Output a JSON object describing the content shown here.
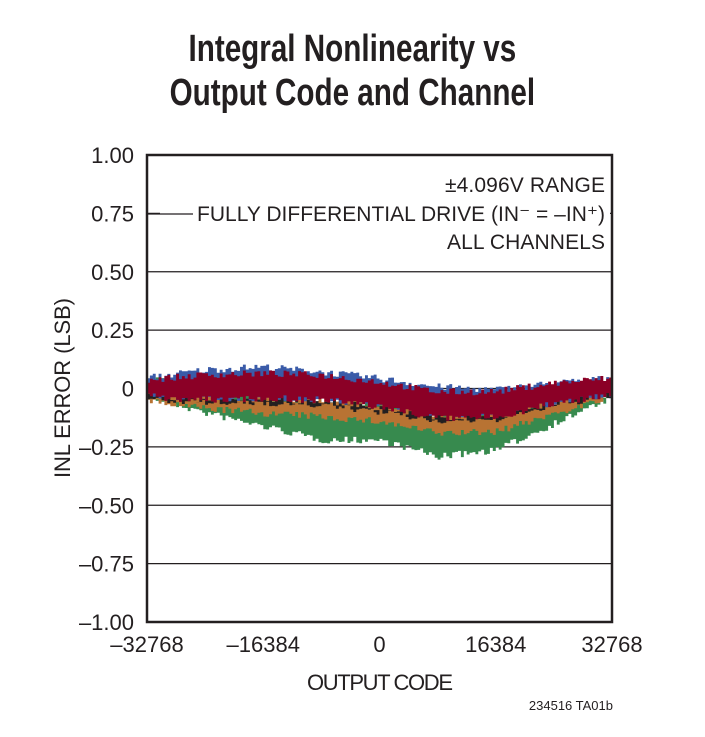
{
  "chart_data": {
    "type": "area",
    "title_lines": [
      "Integral Nonlinearity vs",
      "Output Code and Channel"
    ],
    "xlabel": "OUTPUT CODE",
    "ylabel": "INL ERROR (LSB)",
    "xlim": [
      -32768,
      32768
    ],
    "ylim": [
      -1.0,
      1.0
    ],
    "xticks": [
      -32768,
      -16384,
      0,
      16384,
      32768
    ],
    "xtick_labels": [
      "–32768",
      "–16384",
      "0",
      "16384",
      "32768"
    ],
    "yticks": [
      1.0,
      0.75,
      0.5,
      0.25,
      0,
      -0.25,
      -0.5,
      -0.75,
      -1.0
    ],
    "ytick_labels": [
      "1.00",
      "0.75",
      "0.50",
      "0.25",
      "0",
      "–0.25",
      "–0.50",
      "–0.75",
      "–1.00"
    ],
    "grid": "horizontal",
    "annotation_lines": [
      "±4.096V RANGE",
      "FULLY DIFFERENTIAL DRIVE (IN⁻ = –IN⁺)",
      "ALL CHANNELS"
    ],
    "x": [
      -32768,
      -24576,
      -16384,
      -8192,
      0,
      8192,
      16384,
      24576,
      32768
    ],
    "series": [
      {
        "color": "#378a4e",
        "upper": [
          0.05,
          0.0,
          -0.04,
          -0.05,
          -0.07,
          -0.11,
          -0.11,
          -0.06,
          -0.02
        ],
        "lower": [
          -0.035,
          -0.106,
          -0.163,
          -0.221,
          -0.221,
          -0.292,
          -0.263,
          -0.149,
          -0.035
        ]
      },
      {
        "color": "#b87333",
        "upper": [
          -0.03,
          -0.04,
          -0.04,
          -0.05,
          -0.07,
          -0.11,
          -0.11,
          -0.06,
          -0.02
        ],
        "lower": [
          -0.056,
          -0.085,
          -0.106,
          -0.121,
          -0.142,
          -0.192,
          -0.185,
          -0.106,
          -0.035
        ]
      },
      {
        "color": "#231f20",
        "upper": [
          -0.03,
          -0.05,
          -0.05,
          -0.05,
          -0.08,
          -0.12,
          -0.12,
          -0.06,
          -0.02
        ],
        "lower": [
          -0.04,
          -0.06,
          -0.06,
          -0.07,
          -0.1,
          -0.14,
          -0.13,
          -0.07,
          -0.03
        ]
      },
      {
        "color": "#3a5ba8",
        "upper": [
          0.044,
          0.079,
          0.093,
          0.072,
          0.044,
          0.008,
          -0.006,
          0.022,
          0.044
        ],
        "lower": [
          -0.03,
          -0.04,
          -0.04,
          -0.045,
          -0.07,
          -0.11,
          -0.11,
          -0.06,
          -0.02
        ]
      },
      {
        "color": "#8b0026",
        "upper": [
          0.037,
          0.058,
          0.065,
          0.058,
          0.029,
          -0.014,
          -0.014,
          0.022,
          0.044
        ],
        "lower": [
          -0.035,
          -0.049,
          -0.042,
          -0.049,
          -0.078,
          -0.128,
          -0.121,
          -0.064,
          -0.021
        ]
      }
    ],
    "figure_id": "234516 TA01b"
  }
}
